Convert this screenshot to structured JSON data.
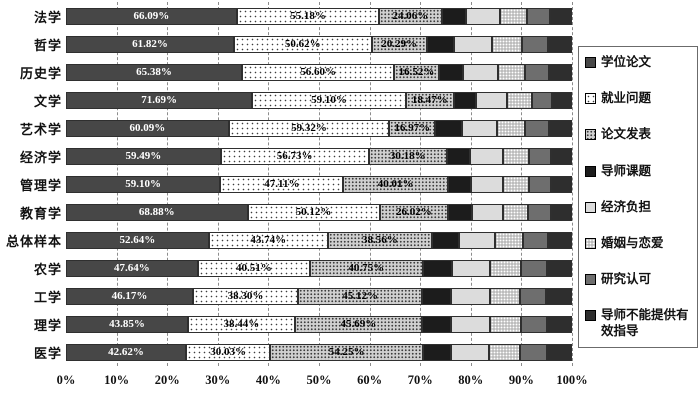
{
  "chart_data": {
    "type": "bar",
    "orientation": "horizontal",
    "stack": "percent",
    "grid": "dashed-vertical-every-10pct",
    "legend_position": "right",
    "x_axis": {
      "range": [
        0,
        100
      ],
      "ticks": [
        "0%",
        "10%",
        "20%",
        "30%",
        "40%",
        "50%",
        "60%",
        "70%",
        "80%",
        "90%",
        "100%"
      ]
    },
    "categories": [
      "法学",
      "哲学",
      "历史学",
      "文学",
      "艺术学",
      "经济学",
      "管理学",
      "教育学",
      "总体样本",
      "农学",
      "工学",
      "理学",
      "医学"
    ],
    "series": [
      {
        "name": "学位论文",
        "fill": "#474747",
        "pattern": "solid",
        "labels_visible": true,
        "label_color": "#ffffff",
        "values": [
          66.09,
          61.82,
          65.38,
          71.69,
          60.09,
          59.49,
          59.1,
          68.88,
          52.64,
          47.64,
          46.17,
          43.85,
          42.62
        ]
      },
      {
        "name": "就业问题",
        "fill": "#ffffff",
        "pattern": "dots-sparse",
        "labels_visible": true,
        "label_color": "#000000",
        "values": [
          55.18,
          50.62,
          56.6,
          59.1,
          59.32,
          56.73,
          47.11,
          50.12,
          43.74,
          40.51,
          38.3,
          38.44,
          30.03
        ]
      },
      {
        "name": "论文发表",
        "fill": "#cfcfcf",
        "pattern": "dots-dense",
        "labels_visible": true,
        "label_color": "#000000",
        "values": [
          24.06,
          20.29,
          16.52,
          18.47,
          16.97,
          30.18,
          40.01,
          26.02,
          38.56,
          40.75,
          45.12,
          45.69,
          54.25
        ]
      },
      {
        "name": "导师课题",
        "fill": "#1c1c1c",
        "pattern": "solid",
        "labels_visible": false,
        "estimated": true,
        "values": [
          9.5,
          10,
          9,
          8.5,
          10,
          9,
          9,
          9,
          10,
          10.5,
          10.5,
          10.5,
          10
        ]
      },
      {
        "name": "经济负担",
        "fill": "#dcdcdc",
        "pattern": "solid",
        "labels_visible": false,
        "estimated": true,
        "values": [
          13,
          14,
          13,
          12,
          13,
          12.5,
          12,
          12,
          13,
          14,
          14,
          14,
          13.5
        ]
      },
      {
        "name": "婚姻与恋爱",
        "fill": "#bdbdbd",
        "pattern": "dots-white",
        "labels_visible": false,
        "estimated": true,
        "values": [
          10.5,
          11,
          10,
          9.5,
          10,
          10,
          10,
          9.5,
          10.5,
          11,
          11,
          11,
          11
        ]
      },
      {
        "name": "研究认可",
        "fill": "#6e6e6e",
        "pattern": "solid",
        "labels_visible": false,
        "estimated": true,
        "values": [
          9,
          9.5,
          9,
          8,
          9,
          8.5,
          8.5,
          8.5,
          9,
          9.5,
          9.5,
          9.5,
          9.5
        ]
      },
      {
        "name": "导师不能提供有效指导",
        "fill": "#2e2e2e",
        "pattern": "solid",
        "labels_visible": false,
        "estimated": true,
        "values": [
          8.5,
          9,
          8.5,
          7.5,
          8.5,
          8,
          8,
          8,
          9,
          9,
          9.5,
          9,
          9
        ]
      }
    ]
  },
  "legend": {
    "items": [
      "学位论文",
      "就业问题",
      "论文发表",
      "导师课题",
      "经济负担",
      "婚姻与恋爱",
      "研究认可",
      "导师不能提供有效指导"
    ]
  },
  "colors": {
    "background": "#ffffff",
    "gridline": "#8c8c8c",
    "segment_border": "#2f2f2f",
    "text": "#111111"
  }
}
